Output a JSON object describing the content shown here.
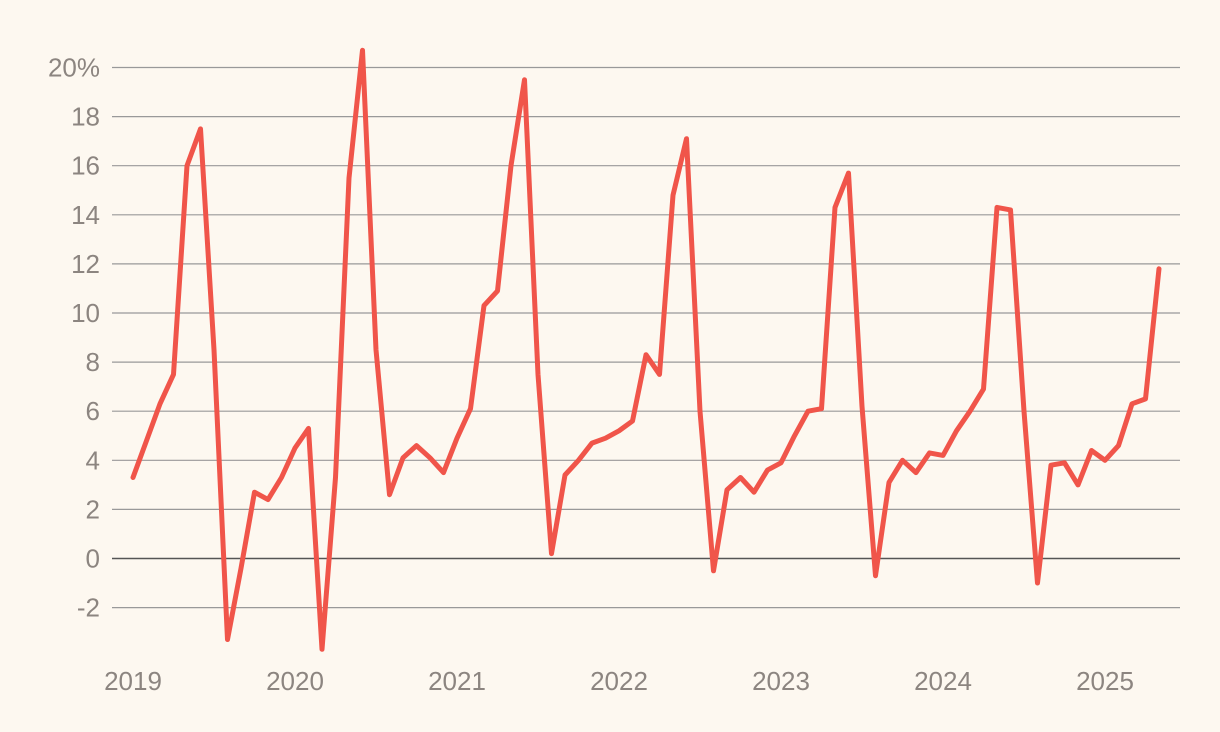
{
  "chart_data": {
    "type": "line",
    "title": "",
    "xlabel": "",
    "ylabel": "",
    "y_unit_suffix": "%",
    "ylim": [
      -3.9,
      21
    ],
    "xlim": [
      "2019-01",
      "2025-06"
    ],
    "grid": true,
    "colors": {
      "line": "#f0554a",
      "grid": "#999999",
      "zero_line": "#555555",
      "text": "#8c8580",
      "background": "#fdf8f0"
    },
    "y_ticks": [
      {
        "value": 20,
        "label": "20%"
      },
      {
        "value": 18,
        "label": "18"
      },
      {
        "value": 16,
        "label": "16"
      },
      {
        "value": 14,
        "label": "14"
      },
      {
        "value": 12,
        "label": "12"
      },
      {
        "value": 10,
        "label": "10"
      },
      {
        "value": 8,
        "label": "8"
      },
      {
        "value": 6,
        "label": "6"
      },
      {
        "value": 4,
        "label": "4"
      },
      {
        "value": 2,
        "label": "2"
      },
      {
        "value": 0,
        "label": "0"
      },
      {
        "value": -2,
        "label": "-2"
      }
    ],
    "x_ticks": [
      {
        "value": "2019-01",
        "label": "2019"
      },
      {
        "value": "2020-01",
        "label": "2020"
      },
      {
        "value": "2021-01",
        "label": "2021"
      },
      {
        "value": "2022-01",
        "label": "2022"
      },
      {
        "value": "2023-01",
        "label": "2023"
      },
      {
        "value": "2024-01",
        "label": "2024"
      },
      {
        "value": "2025-01",
        "label": "2025"
      }
    ],
    "series": [
      {
        "x": [
          "2019-01",
          "2019-02",
          "2019-03",
          "2019-04",
          "2019-05",
          "2019-06",
          "2019-07",
          "2019-08",
          "2019-09",
          "2019-10",
          "2019-11",
          "2019-12",
          "2020-01",
          "2020-02",
          "2020-03",
          "2020-04",
          "2020-05",
          "2020-06",
          "2020-07",
          "2020-08",
          "2020-09",
          "2020-10",
          "2020-11",
          "2020-12",
          "2021-01",
          "2021-02",
          "2021-03",
          "2021-04",
          "2021-05",
          "2021-06",
          "2021-07",
          "2021-08",
          "2021-09",
          "2021-10",
          "2021-11",
          "2021-12",
          "2022-01",
          "2022-02",
          "2022-03",
          "2022-04",
          "2022-05",
          "2022-06",
          "2022-07",
          "2022-08",
          "2022-09",
          "2022-10",
          "2022-11",
          "2022-12",
          "2023-01",
          "2023-02",
          "2023-03",
          "2023-04",
          "2023-05",
          "2023-06",
          "2023-07",
          "2023-08",
          "2023-09",
          "2023-10",
          "2023-11",
          "2023-12",
          "2024-01",
          "2024-02",
          "2024-03",
          "2024-04",
          "2024-05",
          "2024-06",
          "2024-07",
          "2024-08",
          "2024-09",
          "2024-10",
          "2024-11",
          "2024-12",
          "2025-01",
          "2025-02",
          "2025-03",
          "2025-04",
          "2025-05",
          "2025-06"
        ],
        "values": [
          3.3,
          4.8,
          6.3,
          7.5,
          16.0,
          17.5,
          8.5,
          -3.3,
          -0.4,
          2.7,
          2.4,
          3.3,
          4.5,
          5.3,
          -3.7,
          3.3,
          15.5,
          20.7,
          8.5,
          2.6,
          4.1,
          4.6,
          4.1,
          3.5,
          4.9,
          6.1,
          10.3,
          10.9,
          16.0,
          19.5,
          7.5,
          0.2,
          3.4,
          4.0,
          4.7,
          4.9,
          5.2,
          5.6,
          8.3,
          7.5,
          14.8,
          17.1,
          6.0,
          -0.5,
          2.8,
          3.3,
          2.7,
          3.6,
          3.9,
          5.0,
          6.0,
          6.1,
          14.3,
          15.7,
          6.2,
          -0.7,
          3.1,
          4.0,
          3.5,
          4.3,
          4.2,
          5.2,
          6.0,
          6.9,
          14.3,
          14.2,
          6.0,
          -1.0,
          3.8,
          3.9,
          3.0,
          4.4,
          4.0,
          4.6,
          6.3,
          6.5,
          11.8,
          null
        ]
      }
    ]
  }
}
